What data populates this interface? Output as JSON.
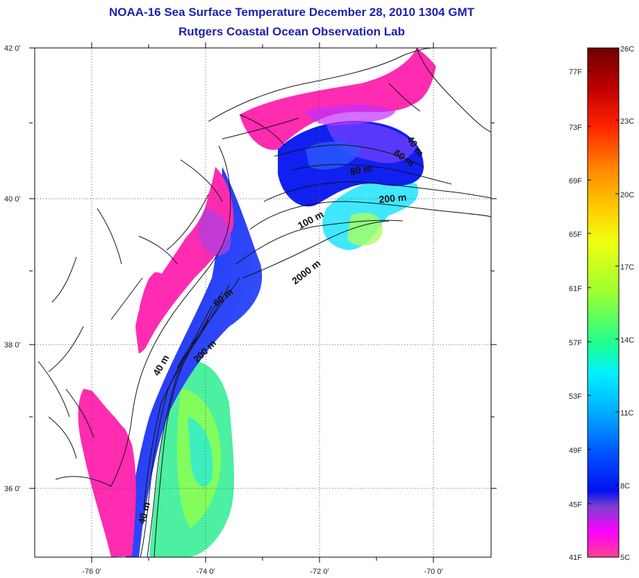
{
  "title": "NOAA-16 Sea Surface Temperature December 28, 2010 1304 GMT",
  "subtitle": "Rutgers Coastal Ocean Observation Lab",
  "map": {
    "lon_ticks": [
      "-76 0'",
      "-74 0'",
      "-72 0'",
      "-70 0'"
    ],
    "lat_ticks": [
      "42 0'",
      "40 0'",
      "38 0'",
      "36 0'"
    ],
    "contour_labels": [
      "40 m",
      "60 m",
      "80 m",
      "200 m",
      "100 m",
      "2000 m",
      "60 m",
      "200 m",
      "40 m",
      "40 m"
    ]
  },
  "colorbar": {
    "fahrenheit_labels": [
      "77F",
      "73F",
      "69F",
      "65F",
      "61F",
      "57F",
      "53F",
      "49F",
      "45F",
      "41F"
    ],
    "celsius_labels": [
      "26C",
      "23C",
      "20C",
      "17C",
      "14C",
      "11C",
      "8C",
      "5C"
    ],
    "colors": [
      "#7a0000",
      "#d40000",
      "#ff5a00",
      "#ffb000",
      "#ffff00",
      "#a8ff20",
      "#20ffa0",
      "#00e6ff",
      "#0090ff",
      "#0020ff",
      "#8a2be2",
      "#ff00ff",
      "#ff3fa0"
    ]
  }
}
